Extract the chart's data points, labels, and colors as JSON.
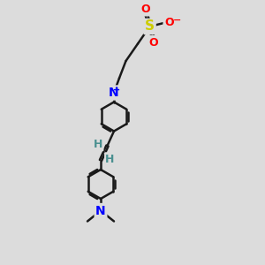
{
  "bg_color": "#dcdcdc",
  "bond_color": "#1a1a1a",
  "bond_width": 1.8,
  "N_color": "#0000ff",
  "O_color": "#ff0000",
  "S_color": "#cccc00",
  "H_color": "#4a9090",
  "figsize": [
    3.0,
    3.0
  ],
  "dpi": 100,
  "xlim": [
    0,
    10
  ],
  "ylim": [
    0,
    20
  ]
}
